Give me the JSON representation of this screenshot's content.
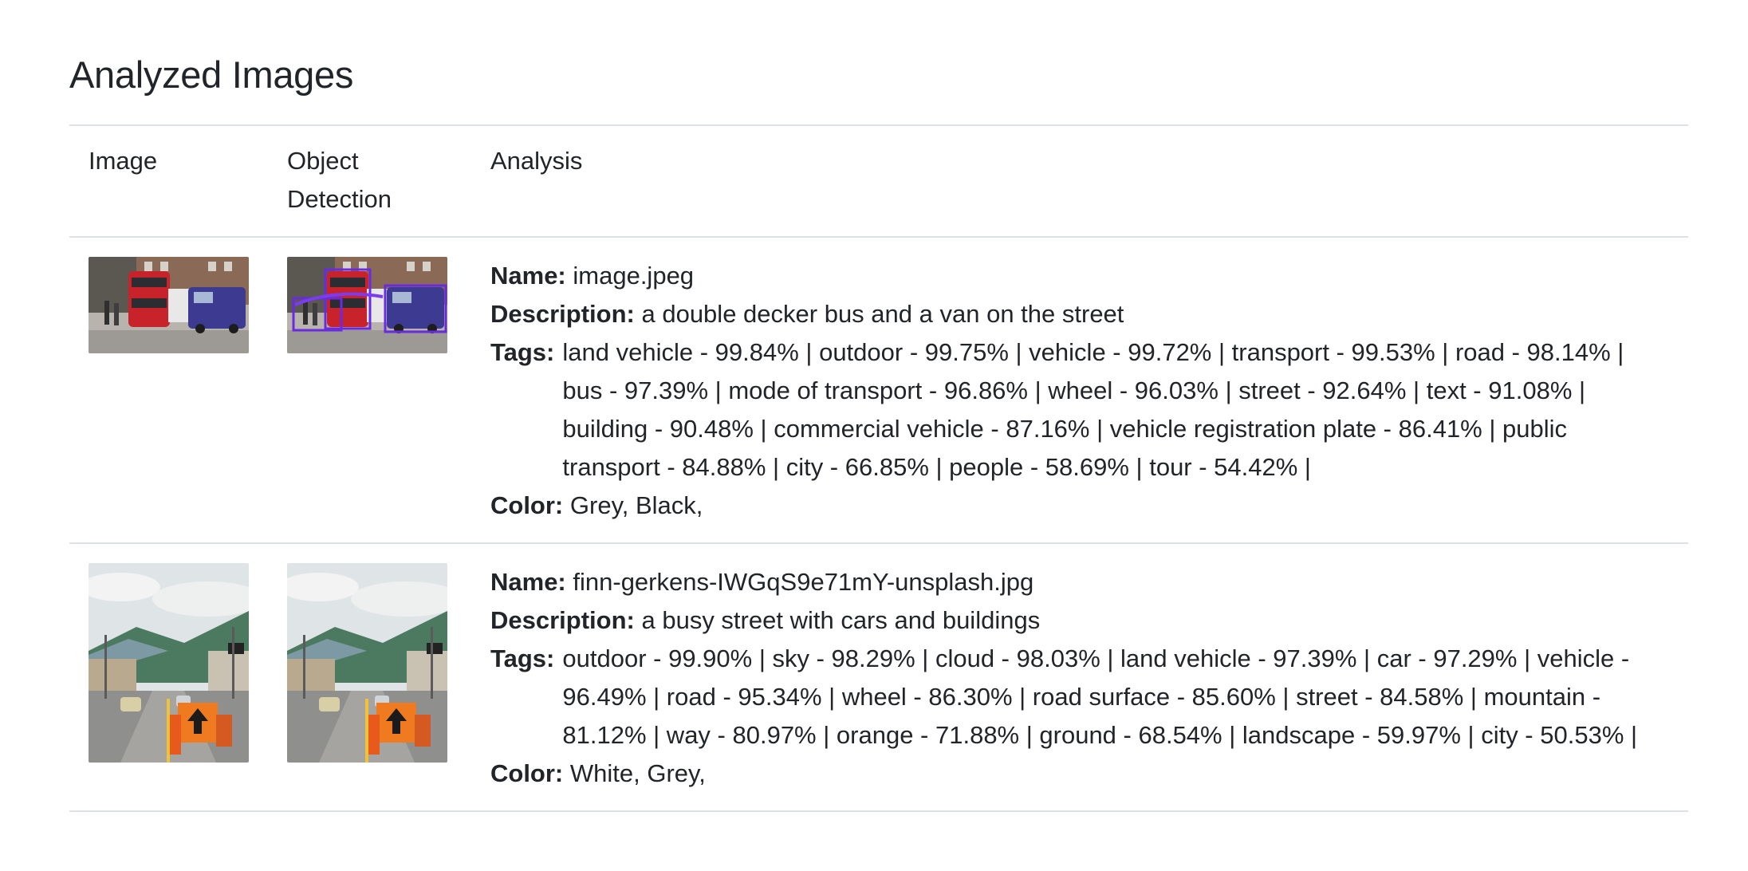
{
  "page": {
    "title": "Analyzed Images"
  },
  "table": {
    "headers": {
      "image": "Image",
      "object_detection": "Object Detection",
      "analysis": "Analysis"
    },
    "labels": {
      "name": "Name:",
      "description": "Description:",
      "tags": "Tags:",
      "color": "Color:"
    },
    "rows": [
      {
        "name": "image.jpeg",
        "description": "a double decker bus and a van on the street",
        "tags": "land vehicle - 99.84% | outdoor - 99.75% | vehicle - 99.72% | transport - 99.53% | road - 98.14% | bus - 97.39% | mode of transport - 96.86% | wheel - 96.03% | street - 92.64% | text - 91.08% | building - 90.48% | commercial vehicle - 87.16% | vehicle registration plate - 86.41% | public transport - 84.88% | city - 66.85% | people - 58.69% | tour - 54.42% |",
        "color": "Grey, Black,"
      },
      {
        "name": "finn-gerkens-IWGqS9e71mY-unsplash.jpg",
        "description": "a busy street with cars and buildings",
        "tags": "outdoor - 99.90% | sky - 98.29% | cloud - 98.03% | land vehicle - 97.39% | car - 97.29% | vehicle - 96.49% | road - 95.34% | wheel - 86.30% | road surface - 85.60% | street - 84.58% | mountain - 81.12% | way - 80.97% | orange - 71.88% | ground - 68.54% | landscape - 59.97% | city - 50.53% |",
        "color": "White, Grey,"
      }
    ]
  }
}
